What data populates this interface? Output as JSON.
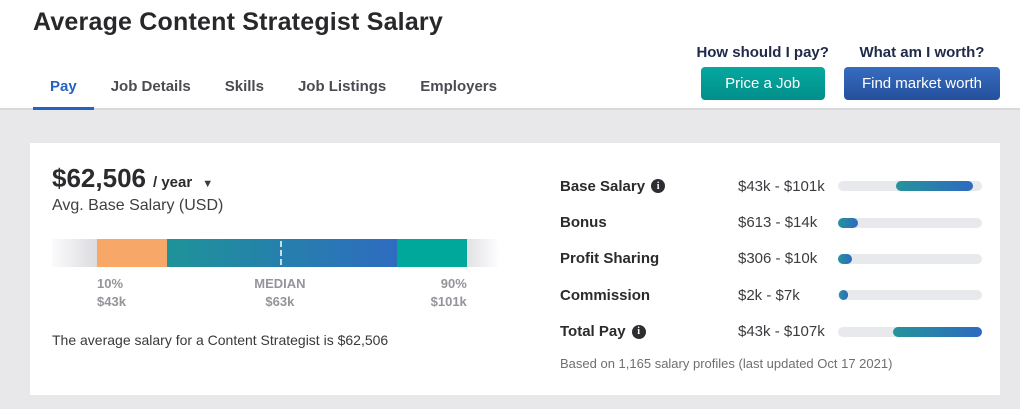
{
  "header": {
    "title": "Average Content Strategist Salary",
    "prompts": [
      {
        "question": "How should I pay?",
        "button_label": "Price a Job",
        "button_color": "#019e98"
      },
      {
        "question": "What am I worth?",
        "button_label": "Find market worth",
        "button_color": "#2e62b4"
      }
    ]
  },
  "tabs": {
    "items": [
      {
        "label": "Pay",
        "active": true
      },
      {
        "label": "Job Details",
        "active": false
      },
      {
        "label": "Skills",
        "active": false
      },
      {
        "label": "Job Listings",
        "active": false
      },
      {
        "label": "Employers",
        "active": false
      }
    ],
    "active_color": "#2762c2"
  },
  "icons": {
    "caret_down": "▼",
    "info": "i"
  },
  "salary_card": {
    "amount": "$62,506",
    "per": "/ year",
    "subtitle": "Avg. Base Salary (USD)",
    "summary": "The average salary for a Content Strategist is $62,506",
    "distribution": {
      "segments": [
        {
          "name": "below-10th-fade",
          "width_pct": 10.1,
          "background": "linear-gradient(to right, #fbfbfc, #dcdce0)"
        },
        {
          "name": "10th-to-25th",
          "width_pct": 15.7,
          "background": "#f7a767"
        },
        {
          "name": "25th-to-75th",
          "width_pct": 51.6,
          "background": "linear-gradient(to right, #1e9399, #2e6cc0)"
        },
        {
          "name": "75th-to-90th",
          "width_pct": 15.7,
          "background": "#00a89b"
        },
        {
          "name": "above-90th-fade",
          "width_pct": 6.9,
          "background": "linear-gradient(to right, #e2e2e5, #fdfdfe)"
        }
      ],
      "markers": [
        {
          "label": "10%",
          "value": "$43k"
        },
        {
          "label": "MEDIAN",
          "value": "$63k"
        },
        {
          "label": "90%",
          "value": "$101k"
        }
      ]
    }
  },
  "pay_components": {
    "rows": [
      {
        "label": "Base Salary",
        "has_info": true,
        "range": "$43k - $101k",
        "fill_start_pct": 40,
        "fill_end_pct": 94
      },
      {
        "label": "Bonus",
        "has_info": false,
        "range": "$613 - $14k",
        "fill_start_pct": 0,
        "fill_end_pct": 14
      },
      {
        "label": "Profit Sharing",
        "has_info": false,
        "range": "$306 - $10k",
        "fill_start_pct": 0,
        "fill_end_pct": 10
      },
      {
        "label": "Commission",
        "has_info": false,
        "range": "$2k - $7k",
        "fill_start_pct": 1,
        "fill_end_pct": 7
      },
      {
        "label": "Total Pay",
        "has_info": true,
        "range": "$43k - $107k",
        "fill_start_pct": 38,
        "fill_end_pct": 100
      }
    ],
    "footnote": "Based on 1,165 salary profiles (last updated Oct 17 2021)",
    "bar_fill_colors": [
      "#25939c",
      "#2e6abf"
    ],
    "bar_track_color": "#e8e9ec"
  }
}
